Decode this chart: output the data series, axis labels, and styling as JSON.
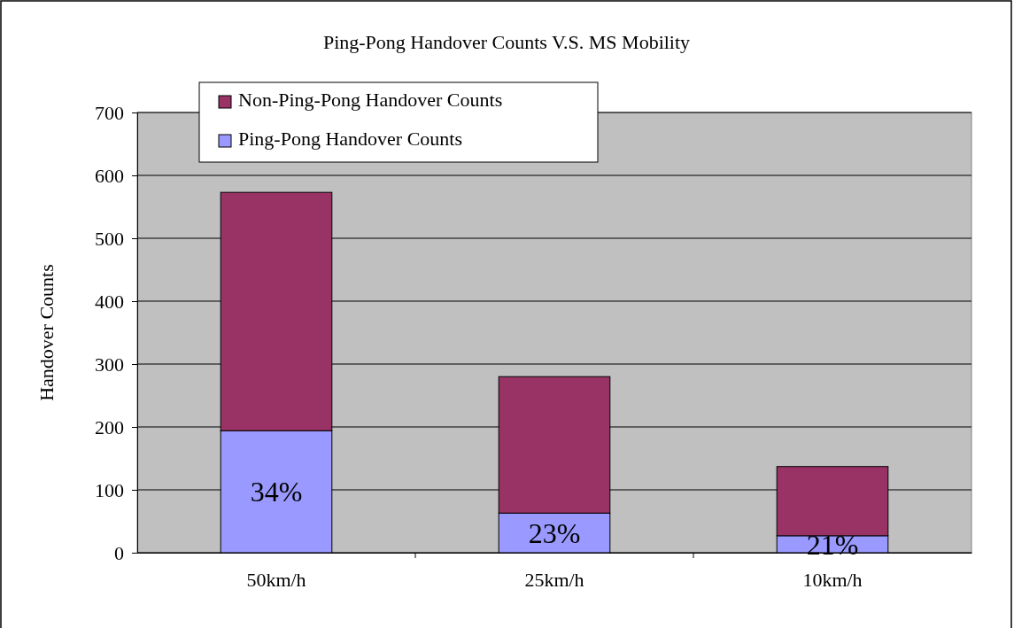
{
  "chart_data": {
    "type": "bar",
    "title": "Ping-Pong Handover Counts V.S. MS Mobility",
    "ylabel": "Handover Counts",
    "categories": [
      "50km/h",
      "25km/h",
      "10km/h"
    ],
    "stacked": true,
    "series": [
      {
        "name": "Ping-Pong Handover Counts",
        "color": "#9999ff",
        "values": [
          194,
          63,
          27
        ]
      },
      {
        "name": "Non-Ping-Pong Handover Counts",
        "color": "#993366",
        "values": [
          379,
          217,
          110
        ]
      }
    ],
    "ylim": [
      0,
      700
    ],
    "yticks": [
      0,
      100,
      200,
      300,
      400,
      500,
      600,
      700
    ],
    "grid": "y",
    "legend": "top left",
    "annotations": [
      "34%",
      "23%",
      "21%"
    ]
  }
}
